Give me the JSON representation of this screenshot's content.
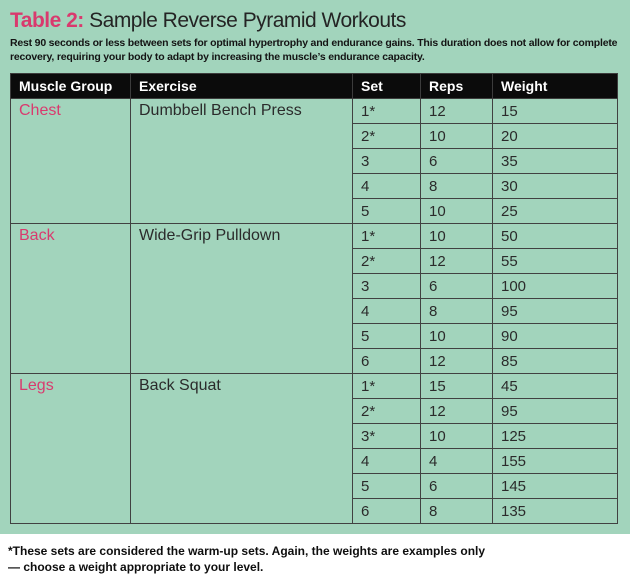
{
  "colors": {
    "panel_teal": "#a2d4bc",
    "accent_pink": "#d93a6e",
    "header_black": "#0b0b0b",
    "grid_line": "#414141",
    "body_text": "#2b2b2b"
  },
  "title": {
    "label": "Table 2:",
    "text": " Sample Reverse Pyramid Workouts"
  },
  "description": "Rest 90 seconds or less between sets for optimal hypertrophy and endurance gains. This duration does not allow for complete recovery, requiring your body to adapt by increasing the muscle’s endurance capacity.",
  "table": {
    "headers": [
      "Muscle Group",
      "Exercise",
      "Set",
      "Reps",
      "Weight"
    ],
    "sections": [
      {
        "muscle": "Chest",
        "exercise": "Dumbbell Bench Press",
        "rows": [
          [
            "1*",
            "12",
            "15"
          ],
          [
            "2*",
            "10",
            "20"
          ],
          [
            "3",
            "6",
            "35"
          ],
          [
            "4",
            "8",
            "30"
          ],
          [
            "5",
            "10",
            "25"
          ]
        ]
      },
      {
        "muscle": "Back",
        "exercise": "Wide-Grip Pulldown",
        "rows": [
          [
            "1*",
            "10",
            "50"
          ],
          [
            "2*",
            "12",
            "55"
          ],
          [
            "3",
            "6",
            "100"
          ],
          [
            "4",
            "8",
            "95"
          ],
          [
            "5",
            "10",
            "90"
          ],
          [
            "6",
            "12",
            "85"
          ]
        ]
      },
      {
        "muscle": "Legs",
        "exercise": "Back Squat",
        "rows": [
          [
            "1*",
            "15",
            "45"
          ],
          [
            "2*",
            "12",
            "95"
          ],
          [
            "3*",
            "10",
            "125"
          ],
          [
            "4",
            "4",
            "155"
          ],
          [
            "5",
            "6",
            "145"
          ],
          [
            "6",
            "8",
            "135"
          ]
        ]
      }
    ]
  },
  "footnote": "*These sets are considered the warm-up sets. Again, the weights are examples only — choose a weight appropriate to your level."
}
